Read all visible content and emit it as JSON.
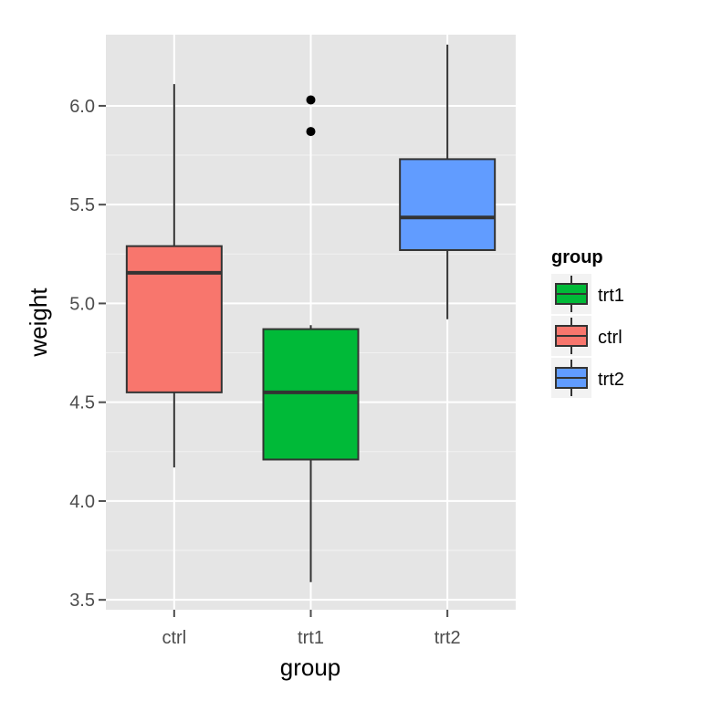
{
  "chart_data": {
    "type": "box",
    "xlabel": "group",
    "ylabel": "weight",
    "ylim": [
      3.45,
      6.36
    ],
    "y_ticks": [
      "3.5",
      "4.0",
      "4.5",
      "5.0",
      "5.5",
      "6.0"
    ],
    "categories": [
      "ctrl",
      "trt1",
      "trt2"
    ],
    "boxes": [
      {
        "category": "ctrl",
        "whisker_low": 4.17,
        "q1": 4.55,
        "median": 5.155,
        "q3": 5.29,
        "whisker_high": 6.11,
        "outliers": [],
        "color": "#F8766D"
      },
      {
        "category": "trt1",
        "whisker_low": 3.59,
        "q1": 4.21,
        "median": 4.55,
        "q3": 4.87,
        "whisker_high": 4.89,
        "outliers": [
          5.87,
          6.03
        ],
        "color": "#00BA38"
      },
      {
        "category": "trt2",
        "whisker_low": 4.92,
        "q1": 5.27,
        "median": 5.435,
        "q3": 5.73,
        "whisker_high": 6.31,
        "outliers": [],
        "color": "#619CFF"
      }
    ],
    "grid": true,
    "legend": {
      "title": "group",
      "position": "right",
      "entries": [
        {
          "label": "trt1",
          "color": "#00BA38"
        },
        {
          "label": "ctrl",
          "color": "#F8766D"
        },
        {
          "label": "trt2",
          "color": "#619CFF"
        }
      ]
    }
  }
}
